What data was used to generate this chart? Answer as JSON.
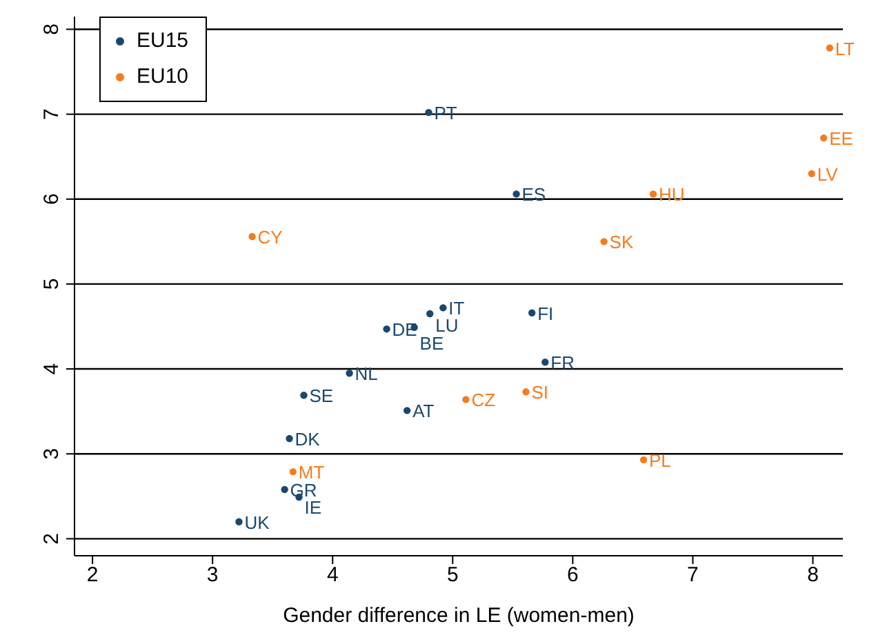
{
  "chart_data": {
    "type": "scatter",
    "xlabel": "Gender difference in LE (women-men)",
    "xlim": [
      1.85,
      8.25
    ],
    "xticks": [
      2,
      3,
      4,
      5,
      6,
      7,
      8
    ],
    "ylim": [
      1.8,
      8.15
    ],
    "yticks": [
      2,
      3,
      4,
      5,
      6,
      7,
      8
    ],
    "grid": "y",
    "legend": "top left",
    "marker": "circle",
    "series": [
      {
        "name": "EU15",
        "color": "#1a476f",
        "x": [
          4.8,
          5.53,
          4.92,
          4.81,
          5.66,
          4.45,
          4.68,
          5.77,
          4.14,
          3.76,
          4.62,
          3.64,
          3.6,
          3.72,
          3.22
        ],
        "values": [
          7.02,
          6.06,
          4.72,
          4.65,
          4.66,
          4.47,
          4.49,
          4.08,
          3.95,
          3.69,
          3.51,
          3.18,
          2.58,
          2.49,
          2.2
        ]
      },
      {
        "name": "EU10",
        "color": "#f47c20",
        "x": [
          8.14,
          8.09,
          7.99,
          6.67,
          3.33,
          6.26,
          5.11,
          5.61,
          3.67,
          6.59
        ],
        "values": [
          7.78,
          6.72,
          6.3,
          6.06,
          5.56,
          5.5,
          3.64,
          3.73,
          2.79,
          2.93
        ]
      }
    ],
    "annotations": [
      {
        "text": "PT",
        "x": 4.8,
        "y": 7.02
      },
      {
        "text": "ES",
        "x": 5.53,
        "y": 6.06
      },
      {
        "text": "IT",
        "x": 4.92,
        "y": 4.72
      },
      {
        "text": "LU",
        "x": 4.81,
        "y": 4.65
      },
      {
        "text": "FI",
        "x": 5.66,
        "y": 4.66
      },
      {
        "text": "DE",
        "x": 4.45,
        "y": 4.47
      },
      {
        "text": "BE",
        "x": 4.68,
        "y": 4.49
      },
      {
        "text": "FR",
        "x": 5.77,
        "y": 4.08
      },
      {
        "text": "NL",
        "x": 4.14,
        "y": 3.95
      },
      {
        "text": "SE",
        "x": 3.76,
        "y": 3.69
      },
      {
        "text": "AT",
        "x": 4.62,
        "y": 3.51
      },
      {
        "text": "DK",
        "x": 3.64,
        "y": 3.18
      },
      {
        "text": "GR",
        "x": 3.6,
        "y": 2.58
      },
      {
        "text": "IE",
        "x": 3.72,
        "y": 2.49
      },
      {
        "text": "UK",
        "x": 3.22,
        "y": 2.2
      },
      {
        "text": "LT",
        "x": 8.14,
        "y": 7.78
      },
      {
        "text": "EE",
        "x": 8.09,
        "y": 6.72
      },
      {
        "text": "LV",
        "x": 7.99,
        "y": 6.3
      },
      {
        "text": "HU",
        "x": 6.67,
        "y": 6.06
      },
      {
        "text": "CY",
        "x": 3.33,
        "y": 5.56
      },
      {
        "text": "SK",
        "x": 6.26,
        "y": 5.5
      },
      {
        "text": "CZ",
        "x": 5.11,
        "y": 3.64
      },
      {
        "text": "SI",
        "x": 5.61,
        "y": 3.73
      },
      {
        "text": "MT",
        "x": 3.67,
        "y": 2.79
      },
      {
        "text": "PL",
        "x": 6.59,
        "y": 2.93
      }
    ]
  }
}
